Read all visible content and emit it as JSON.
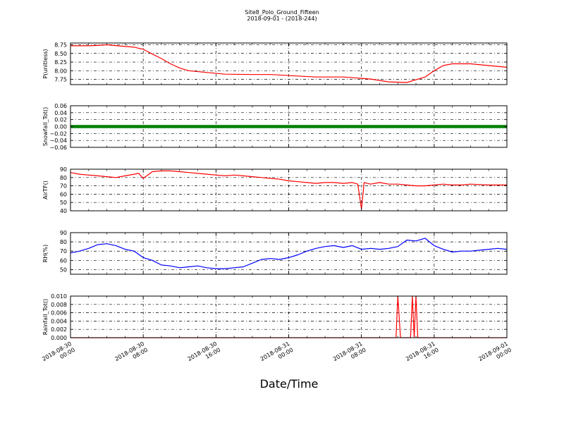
{
  "figure": {
    "title_line1": "Site8_Polo_Ground_Fifteen",
    "title_line2": "2018-09-01 - (2018-244)",
    "xlabel": "Date/Time",
    "x_tick_labels": [
      [
        "2018-08-30",
        "00:00"
      ],
      [
        "2018-08-30",
        "08:00"
      ],
      [
        "2018-08-30",
        "16:00"
      ],
      [
        "2018-08-31",
        "00:00"
      ],
      [
        "2018-08-31",
        "08:00"
      ],
      [
        "2018-08-31",
        "16:00"
      ],
      [
        "2018-09-01",
        "00:00"
      ]
    ]
  },
  "chart_data": [
    {
      "type": "line",
      "ylabel": "P(unitless)",
      "ylim": [
        7.6,
        8.8
      ],
      "yticks": [
        "7.75",
        "8.00",
        "8.25",
        "8.50",
        "8.75"
      ],
      "ytick_values": [
        7.75,
        8.0,
        8.25,
        8.5,
        8.75
      ],
      "grid": true,
      "color": "#ff0000",
      "x_hours": [
        0,
        2,
        3,
        4,
        6,
        7,
        8,
        9,
        10,
        11,
        12,
        13,
        15,
        17,
        20,
        22,
        24,
        27,
        30,
        32,
        33,
        34,
        35,
        37,
        39,
        40,
        41,
        42,
        44,
        46,
        48
      ],
      "values": [
        8.72,
        8.72,
        8.73,
        8.75,
        8.7,
        8.68,
        8.62,
        8.48,
        8.35,
        8.2,
        8.08,
        8.0,
        7.95,
        7.9,
        7.89,
        7.89,
        7.86,
        7.82,
        7.82,
        7.78,
        7.76,
        7.72,
        7.68,
        7.66,
        7.82,
        8.0,
        8.15,
        8.2,
        8.2,
        8.15,
        8.1
      ]
    },
    {
      "type": "scatter",
      "ylabel": "Snowfall_Tot()",
      "ylim": [
        -0.06,
        0.06
      ],
      "yticks": [
        "−0.06",
        "−0.04",
        "−0.02",
        "0.00",
        "0.02",
        "0.04",
        "0.06"
      ],
      "ytick_values": [
        -0.06,
        -0.04,
        -0.02,
        0.0,
        0.02,
        0.04,
        0.06
      ],
      "grid": true,
      "color": "#008000",
      "x_hours": [
        0,
        48
      ],
      "values": [
        0,
        0
      ]
    },
    {
      "type": "line",
      "ylabel": "AirTF()",
      "ylim": [
        40,
        90
      ],
      "yticks": [
        "40",
        "50",
        "60",
        "70",
        "80",
        "90"
      ],
      "ytick_values": [
        40,
        50,
        60,
        70,
        80,
        90
      ],
      "grid": true,
      "color": "#ff0000",
      "x_hours": [
        0,
        1,
        2,
        3,
        4,
        5,
        6,
        7,
        7.5,
        8,
        9,
        10,
        11,
        12,
        13,
        14,
        15,
        16,
        17,
        18,
        19,
        20,
        21,
        22,
        23,
        24,
        25,
        26,
        27,
        28,
        29,
        30,
        31,
        31.6,
        32,
        32.3,
        33,
        34,
        35,
        36,
        37,
        38,
        39,
        40,
        41,
        42,
        43,
        44,
        46,
        48
      ],
      "values": [
        86,
        84,
        83,
        82,
        81,
        80,
        82,
        84,
        85,
        79,
        87,
        88,
        88,
        87,
        86,
        85,
        84,
        83,
        82,
        83,
        82,
        81,
        80,
        79,
        78,
        76,
        75,
        74,
        73,
        74,
        74,
        73,
        74,
        72,
        42,
        74,
        72,
        74,
        72,
        72,
        71,
        70,
        70,
        71,
        72,
        71,
        71,
        72,
        71,
        71
      ]
    },
    {
      "type": "line",
      "ylabel": "RH(%)",
      "ylim": [
        45,
        90
      ],
      "yticks": [
        "50",
        "60",
        "70",
        "80",
        "90"
      ],
      "ytick_values": [
        50,
        60,
        70,
        80,
        90
      ],
      "grid": true,
      "color": "#0000ff",
      "x_hours": [
        0,
        1,
        2,
        3,
        4,
        5,
        6,
        7,
        8,
        9,
        10,
        11,
        12,
        13,
        14,
        15,
        16,
        17,
        18,
        19,
        20,
        21,
        22,
        23,
        24,
        25,
        26,
        27,
        28,
        29,
        30,
        31,
        32,
        33,
        34,
        35,
        36,
        37,
        38,
        39,
        40,
        41,
        42,
        43,
        44,
        45,
        46,
        47,
        48
      ],
      "values": [
        68,
        70,
        73,
        77,
        78,
        76,
        72,
        70,
        63,
        60,
        55,
        54,
        52,
        53,
        54,
        52,
        51,
        51,
        52,
        53,
        57,
        61,
        62,
        61,
        63,
        66,
        70,
        73,
        75,
        76,
        74,
        76,
        72,
        73,
        72,
        73,
        75,
        82,
        81,
        84,
        76,
        72,
        69,
        70,
        70,
        71,
        72,
        73,
        72
      ]
    },
    {
      "type": "line",
      "ylabel": "Rainfall_Tot()",
      "ylim": [
        0,
        0.01
      ],
      "yticks": [
        "0.000",
        "0.002",
        "0.004",
        "0.006",
        "0.008",
        "0.010"
      ],
      "ytick_values": [
        0.0,
        0.002,
        0.004,
        0.006,
        0.008,
        0.01
      ],
      "grid": true,
      "color": "#ff0000",
      "x_hours": [
        0,
        35.8,
        36,
        36.3,
        37.4,
        37.6,
        37.8,
        38.0,
        38.2,
        38.5,
        48
      ],
      "values": [
        0,
        0,
        0.01,
        0,
        0,
        0.01,
        0,
        0.01,
        0,
        0,
        0
      ]
    }
  ]
}
